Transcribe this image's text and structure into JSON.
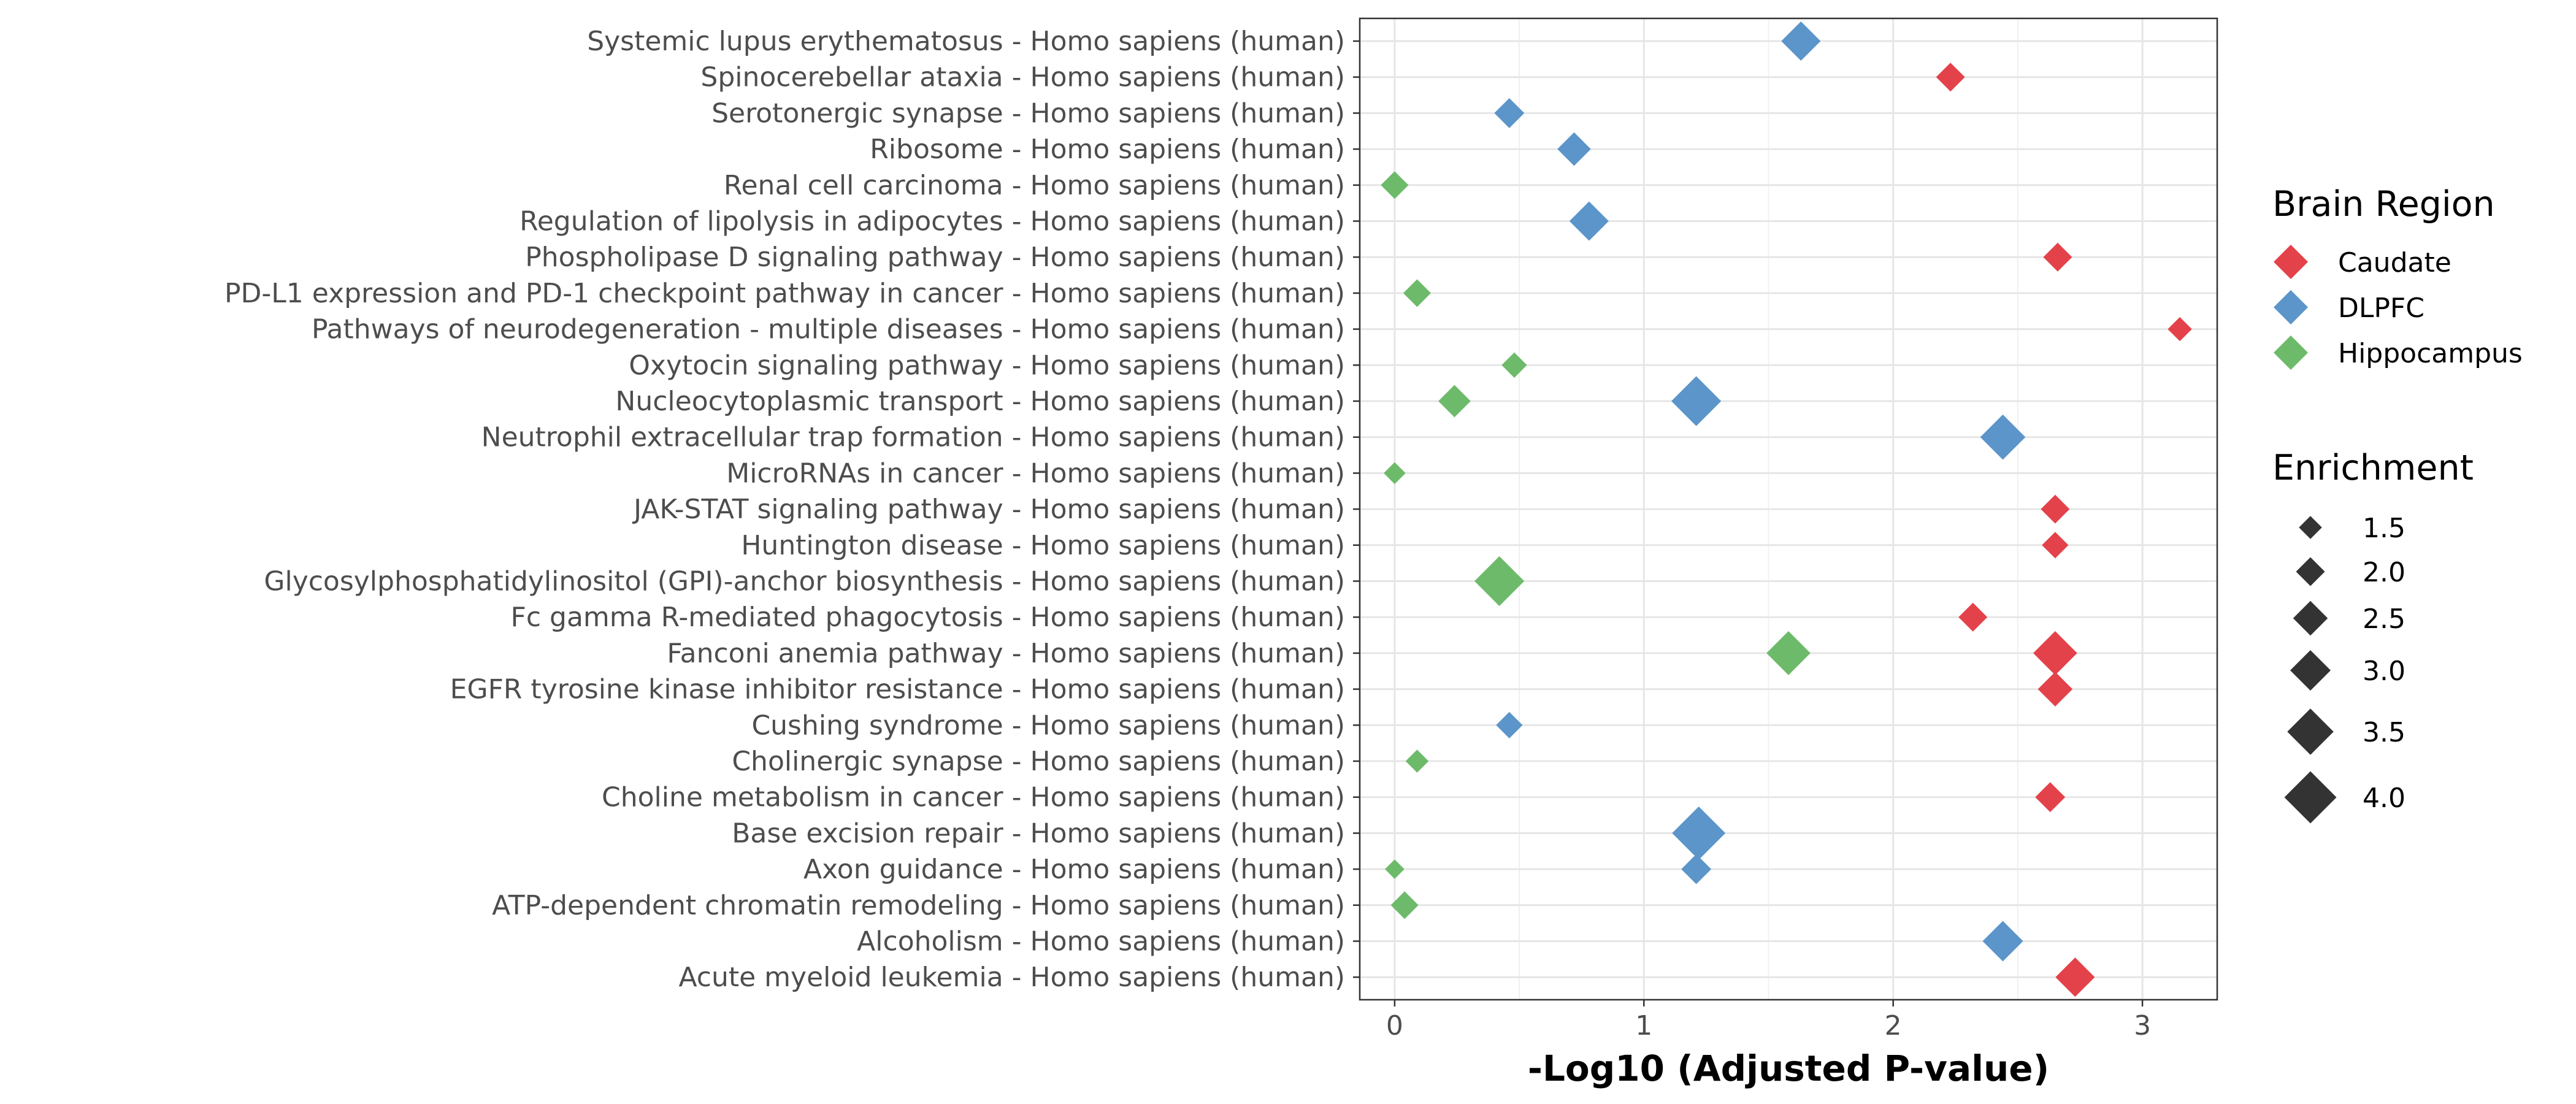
{
  "chart_data": {
    "type": "scatter",
    "xlabel": "-Log10 (Adjusted P-value)",
    "xlim": [
      -0.14,
      3.3
    ],
    "x_ticks": [
      "0",
      "1",
      "2",
      "3"
    ],
    "grid": true,
    "legend_placement": "right",
    "categories": [
      "Systemic lupus erythematosus - Homo sapiens (human)",
      "Spinocerebellar ataxia - Homo sapiens (human)",
      "Serotonergic synapse - Homo sapiens (human)",
      "Ribosome - Homo sapiens (human)",
      "Renal cell carcinoma - Homo sapiens (human)",
      "Regulation of lipolysis in adipocytes - Homo sapiens (human)",
      "Phospholipase D signaling pathway - Homo sapiens (human)",
      "PD-L1 expression and PD-1 checkpoint pathway in cancer - Homo sapiens (human)",
      "Pathways of neurodegeneration - multiple diseases - Homo sapiens (human)",
      "Oxytocin signaling pathway - Homo sapiens (human)",
      "Nucleocytoplasmic transport - Homo sapiens (human)",
      "Neutrophil extracellular trap formation - Homo sapiens (human)",
      "MicroRNAs in cancer - Homo sapiens (human)",
      "JAK-STAT signaling pathway - Homo sapiens (human)",
      "Huntington disease - Homo sapiens (human)",
      "Glycosylphosphatidylinositol (GPI)-anchor biosynthesis - Homo sapiens (human)",
      "Fc gamma R-mediated phagocytosis - Homo sapiens (human)",
      "Fanconi anemia pathway - Homo sapiens (human)",
      "EGFR tyrosine kinase inhibitor resistance - Homo sapiens (human)",
      "Cushing syndrome - Homo sapiens (human)",
      "Cholinergic synapse - Homo sapiens (human)",
      "Choline metabolism in cancer - Homo sapiens (human)",
      "Base excision repair - Homo sapiens (human)",
      "Axon guidance - Homo sapiens (human)",
      "ATP-dependent chromatin remodeling - Homo sapiens (human)",
      "Alcoholism - Homo sapiens (human)",
      "Acute myeloid leukemia - Homo sapiens (human)"
    ],
    "series": [
      {
        "name": "Caudate",
        "color": "#e4424a",
        "points": [
          {
            "category": "Spinocerebellar ataxia - Homo sapiens (human)",
            "x": 2.23,
            "enrichment": 2.0
          },
          {
            "category": "Phospholipase D signaling pathway - Homo sapiens (human)",
            "x": 2.66,
            "enrichment": 2.0
          },
          {
            "category": "Pathways of neurodegeneration - multiple diseases - Homo sapiens (human)",
            "x": 3.15,
            "enrichment": 1.6
          },
          {
            "category": "JAK-STAT signaling pathway - Homo sapiens (human)",
            "x": 2.65,
            "enrichment": 2.0
          },
          {
            "category": "Huntington disease - Homo sapiens (human)",
            "x": 2.65,
            "enrichment": 1.8
          },
          {
            "category": "Fc gamma R-mediated phagocytosis - Homo sapiens (human)",
            "x": 2.32,
            "enrichment": 2.0
          },
          {
            "category": "Fanconi anemia pathway - Homo sapiens (human)",
            "x": 2.65,
            "enrichment": 3.3
          },
          {
            "category": "EGFR tyrosine kinase inhibitor resistance - Homo sapiens (human)",
            "x": 2.65,
            "enrichment": 2.5
          },
          {
            "category": "Choline metabolism in cancer - Homo sapiens (human)",
            "x": 2.63,
            "enrichment": 2.1
          },
          {
            "category": "Acute myeloid leukemia - Homo sapiens (human)",
            "x": 2.73,
            "enrichment": 2.9
          }
        ]
      },
      {
        "name": "DLPFC",
        "color": "#5b95c9",
        "points": [
          {
            "category": "Systemic lupus erythematosus - Homo sapiens (human)",
            "x": 1.63,
            "enrichment": 2.9
          },
          {
            "category": "Serotonergic synapse - Homo sapiens (human)",
            "x": 0.46,
            "enrichment": 2.1
          },
          {
            "category": "Ribosome - Homo sapiens (human)",
            "x": 0.72,
            "enrichment": 2.4
          },
          {
            "category": "Regulation of lipolysis in adipocytes - Homo sapiens (human)",
            "x": 0.78,
            "enrichment": 2.9
          },
          {
            "category": "Nucleocytoplasmic transport - Homo sapiens (human)",
            "x": 1.21,
            "enrichment": 3.8
          },
          {
            "category": "Neutrophil extracellular trap formation - Homo sapiens (human)",
            "x": 2.44,
            "enrichment": 3.4
          },
          {
            "category": "Cushing syndrome - Homo sapiens (human)",
            "x": 0.46,
            "enrichment": 1.8
          },
          {
            "category": "Base excision repair - Homo sapiens (human)",
            "x": 1.22,
            "enrichment": 4.1
          },
          {
            "category": "Axon guidance - Homo sapiens (human)",
            "x": 1.21,
            "enrichment": 2.1
          },
          {
            "category": "Alcoholism - Homo sapiens (human)",
            "x": 2.44,
            "enrichment": 3.0
          }
        ]
      },
      {
        "name": "Hippocampus",
        "color": "#6dbb6a",
        "points": [
          {
            "category": "Renal cell carcinoma - Homo sapiens (human)",
            "x": 0.0,
            "enrichment": 1.9
          },
          {
            "category": "PD-L1 expression and PD-1 checkpoint pathway in cancer - Homo sapiens (human)",
            "x": 0.09,
            "enrichment": 1.9
          },
          {
            "category": "Oxytocin signaling pathway - Homo sapiens (human)",
            "x": 0.48,
            "enrichment": 1.7
          },
          {
            "category": "Nucleocytoplasmic transport - Homo sapiens (human)",
            "x": 0.24,
            "enrichment": 2.3
          },
          {
            "category": "MicroRNAs in cancer - Homo sapiens (human)",
            "x": 0.0,
            "enrichment": 1.4
          },
          {
            "category": "Glycosylphosphatidylinositol (GPI)-anchor biosynthesis - Homo sapiens (human)",
            "x": 0.42,
            "enrichment": 3.8
          },
          {
            "category": "Fanconi anemia pathway - Homo sapiens (human)",
            "x": 1.58,
            "enrichment": 3.3
          },
          {
            "category": "Cholinergic synapse - Homo sapiens (human)",
            "x": 0.09,
            "enrichment": 1.5
          },
          {
            "category": "Axon guidance - Homo sapiens (human)",
            "x": 0.0,
            "enrichment": 1.2
          },
          {
            "category": "ATP-dependent chromatin remodeling - Homo sapiens (human)",
            "x": 0.04,
            "enrichment": 1.9
          }
        ]
      }
    ],
    "legend": {
      "color_title": "Brain Region",
      "color_items": [
        "Caudate",
        "DLPFC",
        "Hippocampus"
      ],
      "size_title": "Enrichment",
      "size_items": [
        {
          "label": "1.5",
          "value": 1.5
        },
        {
          "label": "2.0",
          "value": 2.0
        },
        {
          "label": "2.5",
          "value": 2.5
        },
        {
          "label": "3.0",
          "value": 3.0
        },
        {
          "label": "3.5",
          "value": 3.5
        },
        {
          "label": "4.0",
          "value": 4.0
        }
      ]
    }
  }
}
